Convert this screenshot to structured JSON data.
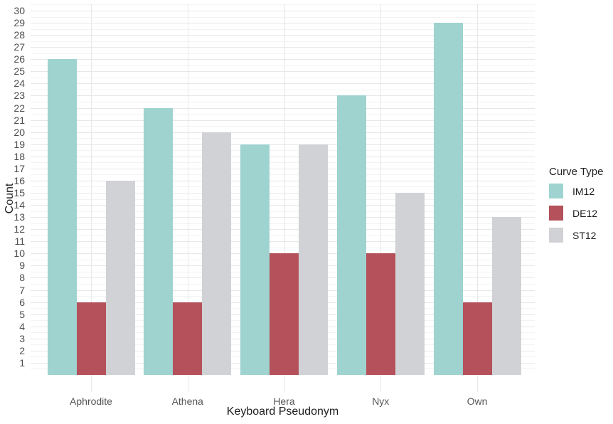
{
  "chart_data": {
    "type": "bar",
    "bar_mode": "grouped",
    "title": "",
    "xlabel": "Keyboard Pseudonym",
    "ylabel": "Count",
    "categories": [
      "Aphrodite",
      "Athena",
      "Hera",
      "Nyx",
      "Own"
    ],
    "series": [
      {
        "name": "IM12",
        "color": "#9ED3D0",
        "values": [
          26,
          22,
          19,
          23,
          29
        ]
      },
      {
        "name": "DE12",
        "color": "#B4515A",
        "values": [
          6,
          6,
          10,
          10,
          6
        ]
      },
      {
        "name": "ST12",
        "color": "#D0D2D5",
        "values": [
          16,
          20,
          19,
          15,
          13
        ]
      }
    ],
    "ylim": [
      0,
      30.5
    ],
    "y_ticks": [
      1,
      2,
      3,
      4,
      5,
      6,
      7,
      8,
      9,
      10,
      11,
      12,
      13,
      14,
      15,
      16,
      17,
      18,
      19,
      20,
      21,
      22,
      23,
      24,
      25,
      26,
      27,
      28,
      29,
      30
    ],
    "grid": {
      "horizontal_major": true,
      "horizontal_minor": true,
      "vertical_major": "category-centers"
    },
    "legend": {
      "title": "Curve Type",
      "position": "right"
    }
  },
  "style_colors": {
    "background": "#FFFFFF",
    "grid_major": "#E7E7E7",
    "grid_minor": "#F3F3F4",
    "axis_text": "#4D4D4D",
    "axis_title": "#1F1F1F"
  }
}
